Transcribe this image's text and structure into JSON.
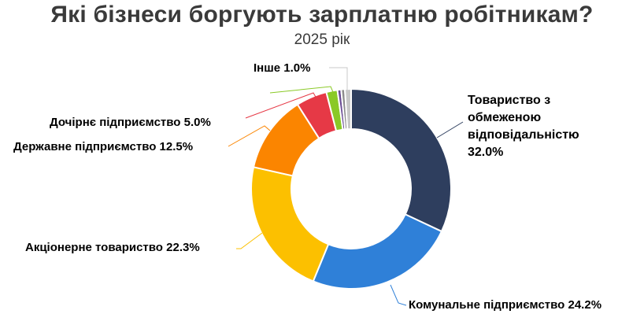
{
  "chart_data": {
    "type": "pie",
    "variant": "donut",
    "title": "Які бізнеси боргують зарплатню робітникам?",
    "subtitle": "2025 рік",
    "categories": [
      "Товариство з обмеженою відповідальністю",
      "Комунальне підприємство",
      "Акціонерне товариство",
      "Державне підприємство",
      "Дочірнє підприємство",
      "(unlabeled green)",
      "(unlabeled purple)",
      "(unlabeled gray)",
      "Інше"
    ],
    "values": [
      32.0,
      24.2,
      22.3,
      12.5,
      5.0,
      1.8,
      0.6,
      0.6,
      1.0
    ],
    "colors": [
      "#2e3e5e",
      "#2f80d8",
      "#fcc000",
      "#fb8500",
      "#e63946",
      "#8ac926",
      "#6a4c93",
      "#8d8d8d",
      "#c8c8c8"
    ],
    "labels": [
      "Товариство з обмеженою відповідальністю 32.0%",
      "Комунальне підприємство 24.2%",
      "Акціонерне товариство 22.3%",
      "Державне підприємство 12.5%",
      "Дочірнє підприємство 5.0%",
      "",
      "",
      "",
      "Інше 1.0%"
    ],
    "start_angle": "12 o'clock, clockwise",
    "legend": "none (data labels with leader lines)"
  },
  "title": "Які бізнеси боргують зарплатню робітникам?",
  "subtitle": "2025 рік",
  "labels": {
    "tov_line1": "Товариство з",
    "tov_line2": "обмеженою",
    "tov_line3": "відповідальністю",
    "tov_value": "32.0%",
    "komunalne": "Комунальне підприємство 24.2%",
    "aktsionerne": "Акціонерне товариство 22.3%",
    "derzhavne": "Державне підприємство 12.5%",
    "dochirne": "Дочірнє підприємство 5.0%",
    "inshe": "Інше 1.0%"
  }
}
